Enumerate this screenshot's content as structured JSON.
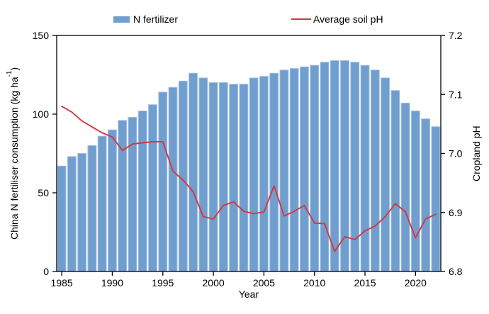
{
  "figure": {
    "background": "#ffffff",
    "frame_color": "#000000"
  },
  "chart_data": {
    "type": "bar",
    "combo": "bar + line (dual axis)",
    "grid": false,
    "legend_position": "top",
    "categories": [
      1985,
      1986,
      1987,
      1988,
      1989,
      1990,
      1991,
      1992,
      1993,
      1994,
      1995,
      1996,
      1997,
      1998,
      1999,
      2000,
      2001,
      2002,
      2003,
      2004,
      2005,
      2006,
      2007,
      2008,
      2009,
      2010,
      2011,
      2012,
      2013,
      2014,
      2015,
      2016,
      2017,
      2018,
      2019,
      2020,
      2021,
      2022
    ],
    "series": [
      {
        "name": "N fertilizer",
        "type": "bar",
        "axis": "left",
        "color": "#6f9ecf",
        "edge_color": "#a3c0e0",
        "values": [
          67,
          73,
          75,
          80,
          86,
          90,
          96,
          98,
          102,
          106,
          114,
          117,
          121,
          126,
          123,
          120,
          120,
          119,
          119,
          123,
          124,
          126,
          128,
          129,
          130,
          131,
          133,
          134,
          134,
          133,
          131,
          128,
          123,
          115,
          107,
          102,
          97,
          92
        ]
      },
      {
        "name": "Average soil pH",
        "type": "line",
        "axis": "right",
        "color": "#d6353f",
        "values": [
          7.08,
          7.07,
          7.055,
          7.045,
          7.035,
          7.028,
          7.005,
          7.016,
          7.018,
          7.02,
          7.02,
          6.97,
          6.955,
          6.935,
          6.893,
          6.889,
          6.912,
          6.918,
          6.902,
          6.898,
          6.901,
          6.945,
          6.894,
          6.902,
          6.912,
          6.882,
          6.881,
          6.834,
          6.859,
          6.854,
          6.869,
          6.877,
          6.893,
          6.915,
          6.901,
          6.857,
          6.889,
          6.897
        ]
      }
    ],
    "left_axis": {
      "label": "China N fertiliser consumption (kg ha⁻¹)",
      "label_parts": {
        "main": "China N fertiliser consumption (kg ha",
        "sup": "-1",
        "close": ")"
      },
      "min": 0,
      "max": 150,
      "ticks": [
        "150",
        "100",
        "50",
        "0"
      ]
    },
    "right_axis": {
      "label": "Cropland pH",
      "min": 6.8,
      "max": 7.2,
      "ticks": [
        "7.2",
        "7.1",
        "7.0",
        "6.9",
        "6.8"
      ]
    },
    "x_axis": {
      "label": "Year",
      "ticks": [
        1985,
        1990,
        1995,
        2000,
        2005,
        2010,
        2015,
        2020
      ]
    }
  }
}
